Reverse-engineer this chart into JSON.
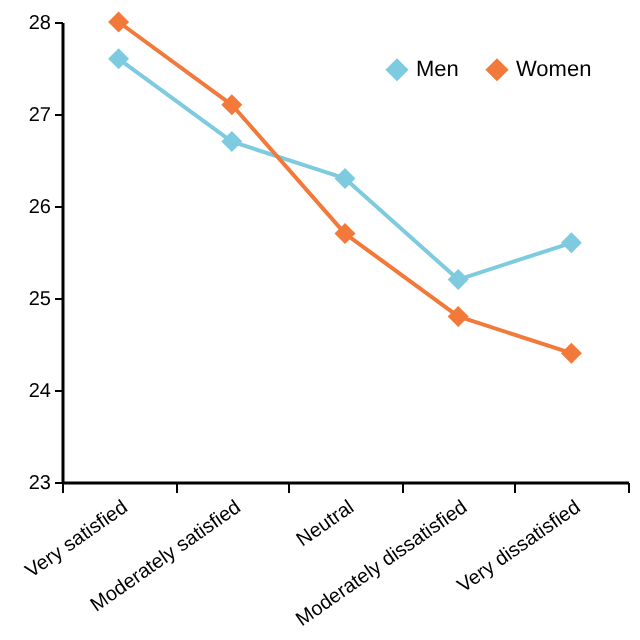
{
  "chart_data": {
    "type": "line",
    "categories": [
      "Very satisfied",
      "Moderately satisfied",
      "Neutral",
      "Moderately dissatisfied",
      "Very dissatisfied"
    ],
    "series": [
      {
        "name": "Men",
        "color": "#7ecbe0",
        "values": [
          27.6,
          26.7,
          26.3,
          25.2,
          25.6
        ]
      },
      {
        "name": "Women",
        "color": "#f2793a",
        "values": [
          28.0,
          27.1,
          25.7,
          24.8,
          24.4
        ]
      }
    ],
    "ylim": [
      23,
      28
    ],
    "yticks": [
      23,
      24,
      25,
      26,
      27,
      28
    ],
    "grid": false,
    "legend": "top right",
    "marker": "diamond",
    "line_style": "solid"
  }
}
